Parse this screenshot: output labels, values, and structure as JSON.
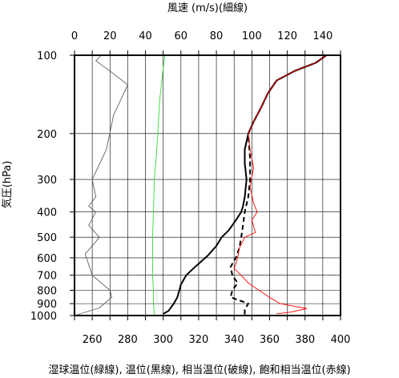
{
  "chart_data": {
    "type": "line",
    "title": "",
    "top_axis": {
      "label": "風速 (m/s)(細線)",
      "ticks": [
        "0",
        "20",
        "40",
        "60",
        "80",
        "100",
        "120",
        "140"
      ],
      "range": [
        0,
        150
      ]
    },
    "bottom_axis": {
      "label": "湿球温位(緑線), 温位(黒線), 相当温位(破線), 飽和相当温位(赤線)",
      "ticks": [
        "260",
        "280",
        "300",
        "320",
        "340",
        "360",
        "380",
        "400"
      ],
      "range": [
        250,
        400
      ]
    },
    "left_axis": {
      "label": "気圧(hPa)",
      "ticks": [
        "100",
        "200",
        "300",
        "400",
        "500",
        "600",
        "700",
        "800",
        "900",
        "1000"
      ],
      "range": [
        1000,
        100
      ],
      "scale": "log"
    },
    "grid": true,
    "series": [
      {
        "name": "風速",
        "axis": "top",
        "color": "#606060",
        "style": "thin",
        "points": [
          [
            0,
            1000
          ],
          [
            14,
            935
          ],
          [
            21,
            850
          ],
          [
            20,
            800
          ],
          [
            10,
            700
          ],
          [
            6,
            580
          ],
          [
            12,
            520
          ],
          [
            14,
            500
          ],
          [
            8,
            450
          ],
          [
            12,
            400
          ],
          [
            8,
            380
          ],
          [
            12,
            350
          ],
          [
            10,
            300
          ],
          [
            18,
            230
          ],
          [
            22,
            170
          ],
          [
            30,
            130
          ],
          [
            20,
            115
          ],
          [
            12,
            105
          ],
          [
            15,
            100
          ]
        ]
      },
      {
        "name": "湿球温位",
        "axis": "bottom",
        "color": "#33dd33",
        "style": "thin",
        "points": [
          [
            295,
            990
          ],
          [
            294.5,
            900
          ],
          [
            294.5,
            800
          ],
          [
            294,
            700
          ],
          [
            294,
            600
          ],
          [
            294,
            500
          ],
          [
            294.5,
            400
          ],
          [
            295,
            300
          ],
          [
            296,
            250
          ],
          [
            297,
            200
          ],
          [
            298,
            150
          ],
          [
            299.5,
            120
          ],
          [
            301,
            100
          ]
        ]
      },
      {
        "name": "温位",
        "axis": "bottom",
        "color": "#000000",
        "style": "thick",
        "points": [
          [
            300,
            985
          ],
          [
            303,
            960
          ],
          [
            306,
            900
          ],
          [
            308,
            850
          ],
          [
            310,
            760
          ],
          [
            313,
            700
          ],
          [
            318,
            650
          ],
          [
            325,
            590
          ],
          [
            330,
            540
          ],
          [
            333,
            500
          ],
          [
            337,
            470
          ],
          [
            341,
            430
          ],
          [
            344,
            400
          ],
          [
            345,
            380
          ],
          [
            346,
            350
          ],
          [
            347,
            300
          ],
          [
            346,
            260
          ],
          [
            346,
            230
          ],
          [
            348,
            200
          ],
          [
            351,
            180
          ],
          [
            355,
            160
          ],
          [
            359,
            140
          ],
          [
            364,
            125
          ],
          [
            374,
            115
          ],
          [
            386,
            107
          ],
          [
            392,
            100
          ],
          [
            395,
            100
          ]
        ]
      },
      {
        "name": "相当温位",
        "axis": "bottom",
        "color": "#000000",
        "style": "dashed",
        "points": [
          [
            346,
            990
          ],
          [
            346,
            950
          ],
          [
            348,
            900
          ],
          [
            338,
            850
          ],
          [
            339,
            800
          ],
          [
            342,
            750
          ],
          [
            339,
            700
          ],
          [
            338,
            650
          ],
          [
            341,
            600
          ],
          [
            343,
            550
          ],
          [
            344,
            500
          ],
          [
            345,
            450
          ],
          [
            346,
            400
          ],
          [
            348,
            350
          ],
          [
            349,
            300
          ],
          [
            349,
            250
          ],
          [
            348,
            200
          ],
          [
            351,
            180
          ],
          [
            355,
            160
          ],
          [
            359,
            140
          ],
          [
            364,
            125
          ],
          [
            374,
            115
          ],
          [
            386,
            107
          ],
          [
            392,
            100
          ],
          [
            395,
            100
          ]
        ]
      },
      {
        "name": "飽和相当温位",
        "axis": "bottom",
        "color": "#ff0000",
        "style": "thin",
        "points": [
          [
            364,
            985
          ],
          [
            372,
            970
          ],
          [
            381,
            940
          ],
          [
            366,
            900
          ],
          [
            361,
            860
          ],
          [
            354,
            800
          ],
          [
            348,
            750
          ],
          [
            344,
            700
          ],
          [
            340,
            660
          ],
          [
            342,
            600
          ],
          [
            343,
            550
          ],
          [
            346,
            500
          ],
          [
            352,
            480
          ],
          [
            350,
            430
          ],
          [
            353,
            400
          ],
          [
            351,
            370
          ],
          [
            349,
            320
          ],
          [
            351,
            270
          ],
          [
            349,
            230
          ],
          [
            348,
            200
          ],
          [
            351,
            180
          ],
          [
            355,
            160
          ],
          [
            359,
            140
          ],
          [
            364,
            125
          ],
          [
            374,
            115
          ],
          [
            386,
            107
          ],
          [
            392,
            100
          ],
          [
            395,
            100
          ]
        ]
      }
    ]
  }
}
